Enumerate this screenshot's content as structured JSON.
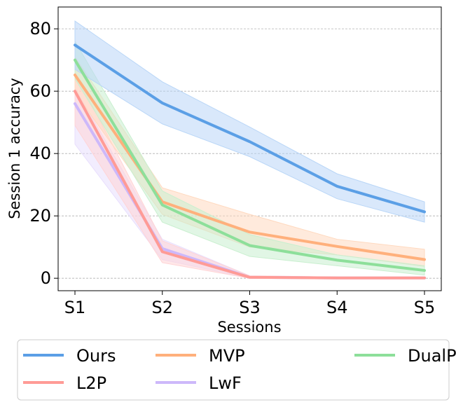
{
  "chart_data": {
    "type": "line",
    "title": "",
    "xlabel": "Sessions",
    "ylabel": "Session 1 accuracy",
    "categories": [
      "S1",
      "S2",
      "S3",
      "S4",
      "S5"
    ],
    "ylim": [
      -4,
      87
    ],
    "yticks": [
      0,
      20,
      40,
      60,
      80
    ],
    "grid": "horizontal dashed",
    "legend_position": "bottom",
    "series": [
      {
        "name": "Ours",
        "color": "#5b9fe6",
        "band_color": "#b9d6f7",
        "values": [
          74.8,
          56.2,
          43.8,
          29.5,
          21.3
        ],
        "upper": [
          82.5,
          63.0,
          48.5,
          33.5,
          24.5
        ],
        "lower": [
          67.0,
          49.5,
          39.0,
          25.5,
          18.0
        ]
      },
      {
        "name": "MVP",
        "color": "#ffb07c",
        "band_color": "#ffd9bf",
        "values": [
          65.2,
          24.5,
          14.8,
          10.2,
          6.0
        ],
        "upper": [
          71.0,
          29.0,
          20.5,
          12.5,
          9.3
        ],
        "lower": [
          59.5,
          20.5,
          10.0,
          7.5,
          3.8
        ]
      },
      {
        "name": "DualPrompt",
        "color": "#8ddf9a",
        "band_color": "#c9efcf",
        "values": [
          70.0,
          23.5,
          10.5,
          5.8,
          2.5
        ],
        "upper": [
          76.0,
          28.0,
          14.0,
          7.5,
          4.0
        ],
        "lower": [
          64.0,
          18.0,
          7.0,
          4.0,
          1.0
        ]
      },
      {
        "name": "L2P",
        "color": "#ff9b96",
        "band_color": "#ffd4d6",
        "values": [
          60.0,
          8.5,
          0.3,
          0.1,
          0.1
        ],
        "upper": [
          66.0,
          12.0,
          0.8,
          0.4,
          0.3
        ],
        "lower": [
          49.0,
          5.0,
          0.0,
          0.0,
          0.0
        ]
      },
      {
        "name": "LwF",
        "color": "#cdb8fa",
        "band_color": "#e8defd",
        "values": [
          56.0,
          9.5,
          0.3,
          0.1,
          0.1
        ],
        "upper": [
          61.0,
          12.5,
          0.8,
          0.4,
          0.3
        ],
        "lower": [
          43.0,
          6.0,
          0.0,
          0.0,
          0.0
        ]
      }
    ]
  }
}
